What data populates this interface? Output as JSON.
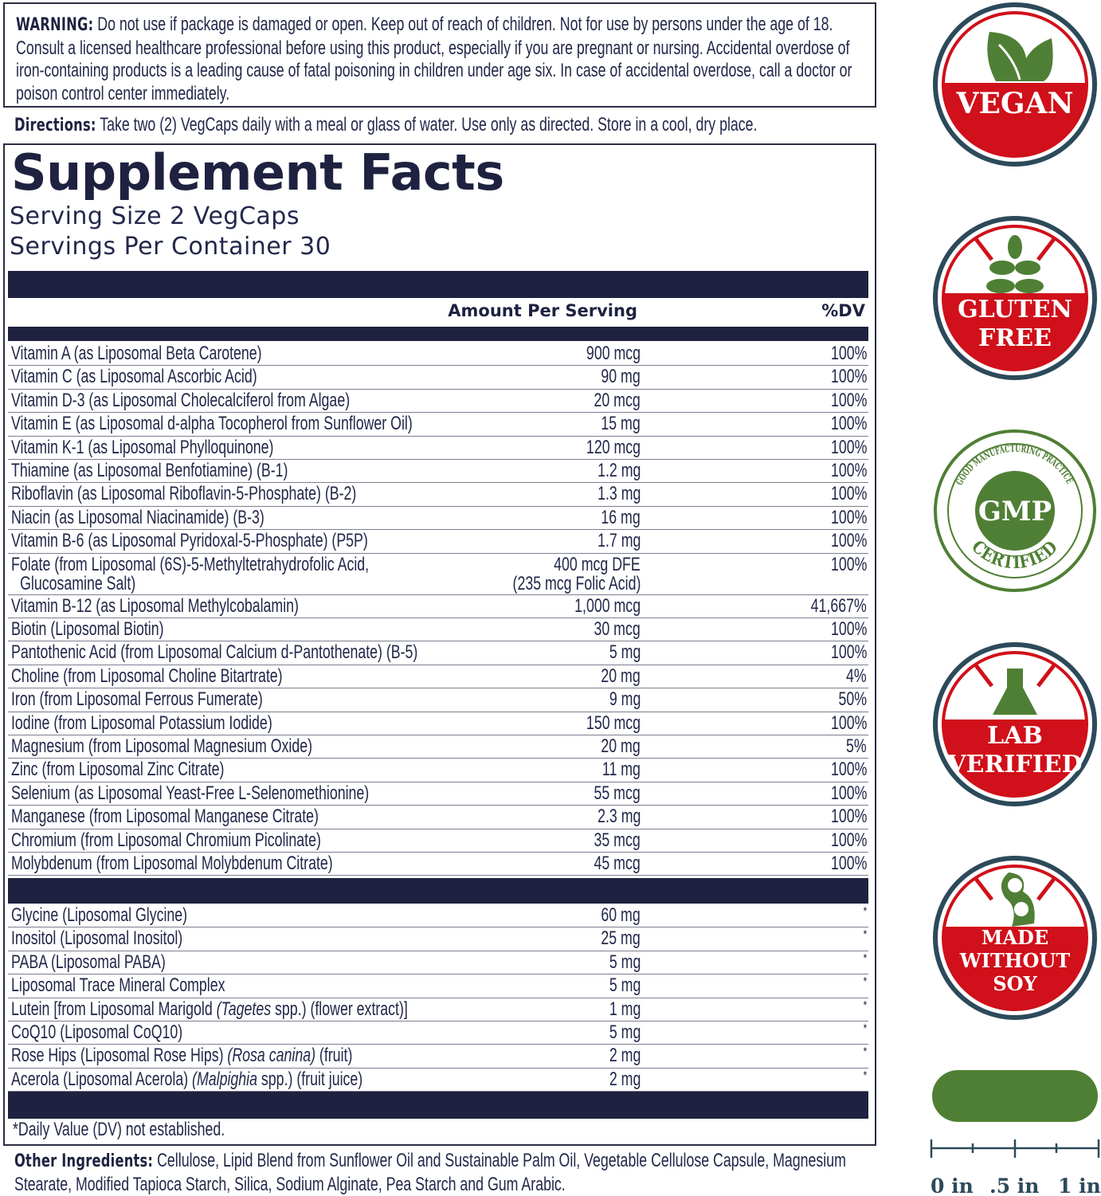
{
  "warning": {
    "label": "WARNING:",
    "text": "Do not use if package is damaged or open. Keep out of reach of children. Not for use by persons under the age of 18. Consult a licensed healthcare professional before using this product, especially if you are pregnant or nursing. Accidental overdose of iron-containing products is a leading cause of fatal poisoning in children under age six. In case of accidental overdose, call a doctor or poison control center immediately."
  },
  "directions": {
    "label": "Directions:",
    "text": "Take two (2) VegCaps daily with a meal or glass of water. Use only as directed. Store in a cool, dry place."
  },
  "facts": {
    "title": "Supplement Facts",
    "serving_size": "Serving Size 2 VegCaps",
    "servings_per_container": "Servings Per Container 30",
    "col_amount": "Amount Per Serving",
    "col_dv": "%DV",
    "rows": [
      {
        "name": [
          "Vitamin A (as Liposomal Beta Carotene)"
        ],
        "amount": "900 mcg",
        "dv": "100%"
      },
      {
        "name": [
          "Vitamin C (as Liposomal Ascorbic Acid)"
        ],
        "amount": "90 mg",
        "dv": "100%"
      },
      {
        "name": [
          "Vitamin D-3 (as Liposomal Cholecalciferol from Algae)"
        ],
        "amount": "20 mcg",
        "dv": "100%"
      },
      {
        "name": [
          "Vitamin E (as Liposomal d-alpha Tocopherol from Sunflower Oil)"
        ],
        "amount": "15 mg",
        "dv": "100%"
      },
      {
        "name": [
          "Vitamin K-1 (as Liposomal Phylloquinone)"
        ],
        "amount": "120 mcg",
        "dv": "100%"
      },
      {
        "name": [
          "Thiamine (as Liposomal Benfotiamine) (B-1)"
        ],
        "amount": "1.2 mg",
        "dv": "100%"
      },
      {
        "name": [
          "Riboflavin (as Liposomal Riboflavin-5-Phosphate) (B-2)"
        ],
        "amount": "1.3 mg",
        "dv": "100%"
      },
      {
        "name": [
          "Niacin (as Liposomal Niacinamide) (B-3)"
        ],
        "amount": "16 mg",
        "dv": "100%"
      },
      {
        "name": [
          "Vitamin B-6 (as Liposomal Pyridoxal-5-Phosphate) (P5P)"
        ],
        "amount": "1.7 mg",
        "dv": "100%"
      },
      {
        "name": [
          "Folate (from Liposomal (6S)-5-Methyltetrahydrofolic Acid,"
        ],
        "name2": "Glucosamine Salt)",
        "amount": "400 mcg DFE",
        "amount2": "(235 mcg Folic Acid)",
        "dv": "100%"
      },
      {
        "name": [
          "Vitamin B-12 (as Liposomal Methylcobalamin)"
        ],
        "amount": "1,000 mcg",
        "dv": "41,667%"
      },
      {
        "name": [
          "Biotin (Liposomal Biotin)"
        ],
        "amount": "30 mcg",
        "dv": "100%"
      },
      {
        "name": [
          "Pantothenic Acid (from Liposomal Calcium d-Pantothenate) (B-5)"
        ],
        "amount": "5 mg",
        "dv": "100%"
      },
      {
        "name": [
          "Choline (from Liposomal Choline Bitartrate)"
        ],
        "amount": "20 mg",
        "dv": "4%"
      },
      {
        "name": [
          "Iron (from Liposomal Ferrous Fumerate)"
        ],
        "amount": "9 mg",
        "dv": "50%"
      },
      {
        "name": [
          "Iodine (from Liposomal Potassium Iodide)"
        ],
        "amount": "150 mcg",
        "dv": "100%"
      },
      {
        "name": [
          "Magnesium (from Liposomal Magnesium Oxide)"
        ],
        "amount": "20 mg",
        "dv": "5%"
      },
      {
        "name": [
          "Zinc (from Liposomal Zinc Citrate)"
        ],
        "amount": "11 mg",
        "dv": "100%"
      },
      {
        "name": [
          "Selenium (as Liposomal Yeast-Free L-Selenomethionine)"
        ],
        "amount": "55 mcg",
        "dv": "100%"
      },
      {
        "name": [
          "Manganese (from Liposomal Manganese Citrate)"
        ],
        "amount": "2.3 mg",
        "dv": "100%"
      },
      {
        "name": [
          "Chromium (from Liposomal Chromium Picolinate)"
        ],
        "amount": "35 mcg",
        "dv": "100%"
      },
      {
        "name": [
          "Molybdenum (from Liposomal Molybdenum Citrate)"
        ],
        "amount": "45 mcg",
        "dv": "100%"
      }
    ],
    "rows2": [
      {
        "name": [
          "Glycine (Liposomal Glycine)"
        ],
        "amount": "60 mg",
        "dv": "*"
      },
      {
        "name": [
          "Inositol (Liposomal Inositol)"
        ],
        "amount": "25 mg",
        "dv": "*"
      },
      {
        "name": [
          "PABA (Liposomal PABA)"
        ],
        "amount": "5 mg",
        "dv": "*"
      },
      {
        "name": [
          "Liposomal Trace Mineral Complex"
        ],
        "amount": "5 mg",
        "dv": "*"
      },
      {
        "name": [
          "Lutein [from Liposomal Marigold ",
          "(Tagetes",
          " spp.) (flower extract)]"
        ],
        "amount": "1 mg",
        "dv": "*"
      },
      {
        "name": [
          "CoQ10 (Liposomal CoQ10)"
        ],
        "amount": "5 mg",
        "dv": "*"
      },
      {
        "name": [
          "Rose Hips (Liposomal Rose Hips) ",
          "(Rosa canina)",
          " (fruit)"
        ],
        "amount": "2 mg",
        "dv": "*"
      },
      {
        "name": [
          "Acerola (Liposomal Acerola) ",
          "(Malpighia",
          " spp.) (fruit juice)"
        ],
        "amount": "2 mg",
        "dv": "*"
      }
    ],
    "footnote": "*Daily Value (DV) not established."
  },
  "other_ingredients": {
    "label": "Other Ingredients:",
    "text": "Cellulose, Lipid Blend from Sunflower Oil and Sustainable Palm Oil, Vegetable Cellulose Capsule, Magnesium Stearate, Modified Tapioca Starch, Silica, Sodium Alginate, Pea Starch and Gum Arabic."
  },
  "badges": [
    {
      "icon": "leaf-icon",
      "lines": [
        "VEGAN"
      ]
    },
    {
      "icon": "wheat-crossed-icon",
      "lines": [
        "GLUTEN",
        "FREE"
      ]
    },
    {
      "icon": "gmp-seal-icon",
      "lines": [
        "GMP"
      ],
      "arc_top": "GOOD MANUFACTURING PRACTICE",
      "arc_bottom": "CERTIFIED"
    },
    {
      "icon": "flask-crossed-icon",
      "lines": [
        "LAB",
        "VERIFIED"
      ]
    },
    {
      "icon": "soybean-crossed-icon",
      "lines": [
        "MADE",
        "WITHOUT",
        "SOY"
      ]
    }
  ],
  "size_scale": {
    "labels": [
      "0 in",
      ".5 in",
      "1 in"
    ]
  },
  "colors": {
    "navy": "#1e2240",
    "badge_red": "#d0101a",
    "badge_ring": "#2c4a5a",
    "green": "#4f7f34"
  }
}
